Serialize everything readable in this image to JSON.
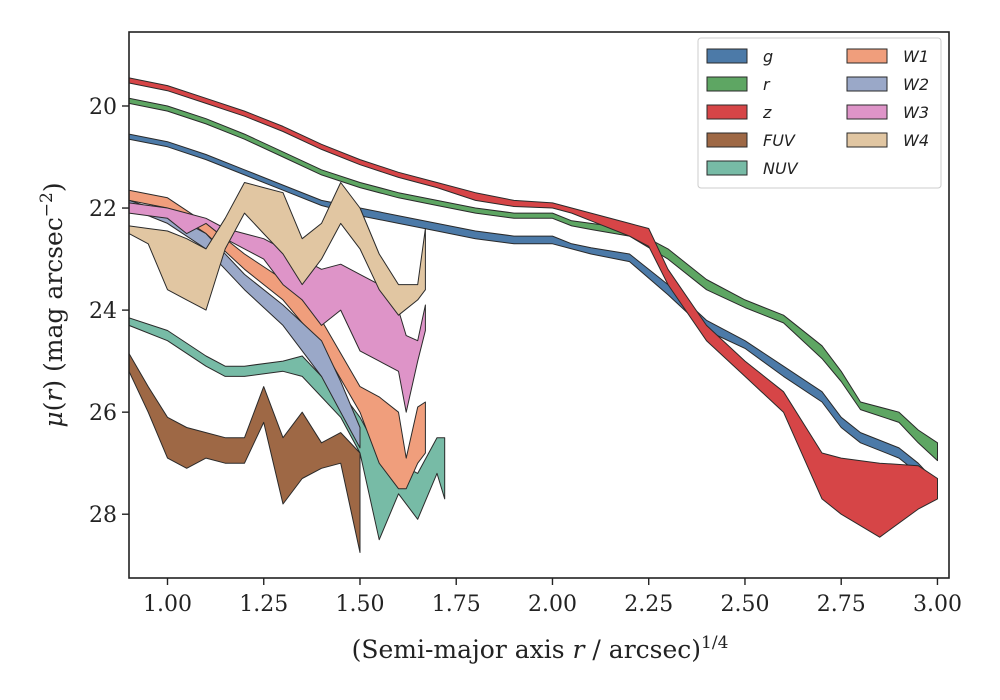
{
  "chart_data": {
    "type": "area",
    "xlabel": "(Semi-major axis r / arcsec)^1/4",
    "ylabel": "μ(r) (mag arcsec^−2)",
    "xlim": [
      0.9,
      3.03
    ],
    "ylim": [
      29.25,
      18.55
    ],
    "y_inverted": true,
    "grid": false,
    "legend_position": "top-right",
    "xticks": [
      "1.00",
      "1.25",
      "1.50",
      "1.75",
      "2.00",
      "2.25",
      "2.50",
      "2.75",
      "3.00"
    ],
    "xtick_values": [
      1.0,
      1.25,
      1.5,
      1.75,
      2.0,
      2.25,
      2.5,
      2.75,
      3.0
    ],
    "yticks": [
      "20",
      "22",
      "24",
      "26",
      "28"
    ],
    "ytick_values": [
      20,
      22,
      24,
      26,
      28
    ],
    "series": [
      {
        "name": "g",
        "color": "#4c7aa8",
        "x": [
          0.9,
          1.0,
          1.1,
          1.2,
          1.3,
          1.4,
          1.5,
          1.6,
          1.7,
          1.8,
          1.9,
          2.0,
          2.05,
          2.1,
          2.2,
          2.3,
          2.4,
          2.5,
          2.6,
          2.7,
          2.75,
          2.8,
          2.9,
          2.95,
          3.0
        ],
        "lower": [
          20.55,
          20.7,
          20.95,
          21.25,
          21.55,
          21.85,
          22.0,
          22.15,
          22.3,
          22.45,
          22.55,
          22.55,
          22.7,
          22.78,
          22.9,
          23.5,
          24.2,
          24.6,
          25.1,
          25.6,
          26.1,
          26.4,
          26.7,
          27.0,
          27.4
        ],
        "upper": [
          20.65,
          20.8,
          21.05,
          21.35,
          21.65,
          21.95,
          22.15,
          22.3,
          22.45,
          22.6,
          22.7,
          22.7,
          22.8,
          22.9,
          23.05,
          23.7,
          24.4,
          24.75,
          25.3,
          25.8,
          26.3,
          26.6,
          26.9,
          27.2,
          27.6
        ]
      },
      {
        "name": "r",
        "color": "#5ea663",
        "x": [
          0.9,
          1.0,
          1.1,
          1.2,
          1.3,
          1.4,
          1.5,
          1.6,
          1.7,
          1.8,
          1.9,
          2.0,
          2.05,
          2.1,
          2.2,
          2.3,
          2.4,
          2.5,
          2.6,
          2.7,
          2.75,
          2.8,
          2.9,
          2.95,
          3.0
        ],
        "lower": [
          19.85,
          20.0,
          20.25,
          20.55,
          20.9,
          21.25,
          21.5,
          21.7,
          21.85,
          22.0,
          22.1,
          22.1,
          22.25,
          22.3,
          22.4,
          22.8,
          23.4,
          23.8,
          24.1,
          24.7,
          25.2,
          25.8,
          26.0,
          26.35,
          26.6
        ],
        "upper": [
          19.95,
          20.1,
          20.35,
          20.65,
          21.0,
          21.35,
          21.6,
          21.8,
          21.95,
          22.1,
          22.2,
          22.2,
          22.35,
          22.42,
          22.55,
          23.0,
          23.6,
          23.95,
          24.25,
          24.95,
          25.4,
          25.95,
          26.2,
          26.6,
          26.95
        ]
      },
      {
        "name": "z",
        "color": "#d64547",
        "x": [
          0.9,
          1.0,
          1.1,
          1.2,
          1.3,
          1.4,
          1.5,
          1.6,
          1.7,
          1.8,
          1.9,
          2.0,
          2.05,
          2.1,
          2.2,
          2.25,
          2.3,
          2.4,
          2.5,
          2.6,
          2.7,
          2.75,
          2.85,
          2.95,
          3.0
        ],
        "lower": [
          19.45,
          19.6,
          19.85,
          20.1,
          20.4,
          20.75,
          21.05,
          21.3,
          21.5,
          21.7,
          21.85,
          21.9,
          22.0,
          22.1,
          22.3,
          22.4,
          23.2,
          24.3,
          25.0,
          25.6,
          26.8,
          26.9,
          27.0,
          27.05,
          27.3
        ],
        "upper": [
          19.55,
          19.7,
          19.95,
          20.2,
          20.5,
          20.85,
          21.15,
          21.4,
          21.6,
          21.85,
          21.97,
          22.0,
          22.1,
          22.25,
          22.55,
          22.75,
          23.5,
          24.6,
          25.3,
          26.0,
          27.7,
          28.0,
          28.45,
          27.9,
          27.7
        ]
      },
      {
        "name": "FUV",
        "color": "#9e6845",
        "x": [
          0.9,
          0.95,
          1.0,
          1.05,
          1.1,
          1.15,
          1.2,
          1.25,
          1.3,
          1.35,
          1.4,
          1.45,
          1.5
        ],
        "lower": [
          24.85,
          25.5,
          26.1,
          26.3,
          26.4,
          26.5,
          26.5,
          25.5,
          26.5,
          26.0,
          26.6,
          26.4,
          26.8
        ],
        "upper": [
          25.2,
          26.0,
          26.9,
          27.1,
          26.9,
          27.0,
          27.0,
          26.2,
          27.8,
          27.3,
          27.1,
          27.0,
          28.75
        ]
      },
      {
        "name": "NUV",
        "color": "#77bba6",
        "x": [
          0.9,
          1.0,
          1.1,
          1.15,
          1.2,
          1.3,
          1.35,
          1.4,
          1.45,
          1.5,
          1.55,
          1.6,
          1.65,
          1.7,
          1.72
        ],
        "lower": [
          24.15,
          24.4,
          24.9,
          25.1,
          25.1,
          25.0,
          24.9,
          25.3,
          25.6,
          26.1,
          26.8,
          27.0,
          27.2,
          26.5,
          26.5
        ],
        "upper": [
          24.3,
          24.6,
          25.1,
          25.3,
          25.3,
          25.2,
          25.3,
          25.7,
          26.1,
          26.8,
          28.5,
          27.6,
          28.1,
          27.2,
          27.7
        ]
      },
      {
        "name": "W1",
        "color": "#f09e7c",
        "x": [
          0.9,
          1.0,
          1.1,
          1.2,
          1.3,
          1.4,
          1.5,
          1.55,
          1.6,
          1.62,
          1.65,
          1.67
        ],
        "lower": [
          21.65,
          21.8,
          22.3,
          22.9,
          23.4,
          24.2,
          25.5,
          25.7,
          26.0,
          26.9,
          25.9,
          25.8
        ],
        "upper": [
          21.85,
          22.0,
          22.5,
          23.2,
          23.8,
          24.7,
          26.0,
          27.0,
          27.5,
          27.5,
          27.0,
          26.8
        ]
      },
      {
        "name": "W2",
        "color": "#9aa8c8",
        "x": [
          0.9,
          1.0,
          1.1,
          1.2,
          1.3,
          1.4,
          1.45,
          1.5
        ],
        "lower": [
          21.85,
          22.1,
          22.5,
          23.3,
          23.9,
          24.6,
          25.4,
          26.3
        ],
        "upper": [
          22.0,
          22.3,
          22.8,
          23.6,
          24.3,
          25.3,
          26.0,
          26.7
        ]
      },
      {
        "name": "W3",
        "color": "#de94c8",
        "x": [
          0.9,
          1.0,
          1.05,
          1.1,
          1.15,
          1.2,
          1.25,
          1.3,
          1.35,
          1.4,
          1.45,
          1.5,
          1.55,
          1.6,
          1.62,
          1.65,
          1.67
        ],
        "lower": [
          21.9,
          22.0,
          22.1,
          22.2,
          22.4,
          22.5,
          22.6,
          22.8,
          23.0,
          23.2,
          23.1,
          23.3,
          23.5,
          24.0,
          24.5,
          24.6,
          23.9
        ],
        "upper": [
          22.1,
          22.2,
          22.5,
          22.3,
          22.6,
          22.8,
          23.0,
          23.5,
          23.8,
          24.3,
          24.0,
          24.8,
          25.0,
          25.2,
          26.0,
          25.0,
          24.4
        ]
      },
      {
        "name": "W4",
        "color": "#e1c6a2",
        "x": [
          0.9,
          0.95,
          1.0,
          1.05,
          1.1,
          1.15,
          1.2,
          1.25,
          1.3,
          1.35,
          1.4,
          1.45,
          1.5,
          1.55,
          1.6,
          1.65,
          1.67
        ],
        "lower": [
          22.35,
          22.4,
          22.45,
          22.6,
          22.8,
          22.2,
          21.5,
          21.6,
          21.7,
          22.6,
          22.3,
          21.5,
          22.0,
          22.9,
          23.5,
          23.5,
          22.4
        ],
        "upper": [
          22.5,
          22.7,
          23.6,
          23.8,
          24.0,
          22.8,
          22.1,
          22.5,
          22.9,
          23.5,
          23.0,
          22.3,
          22.8,
          23.6,
          24.1,
          23.8,
          23.6
        ]
      }
    ]
  }
}
